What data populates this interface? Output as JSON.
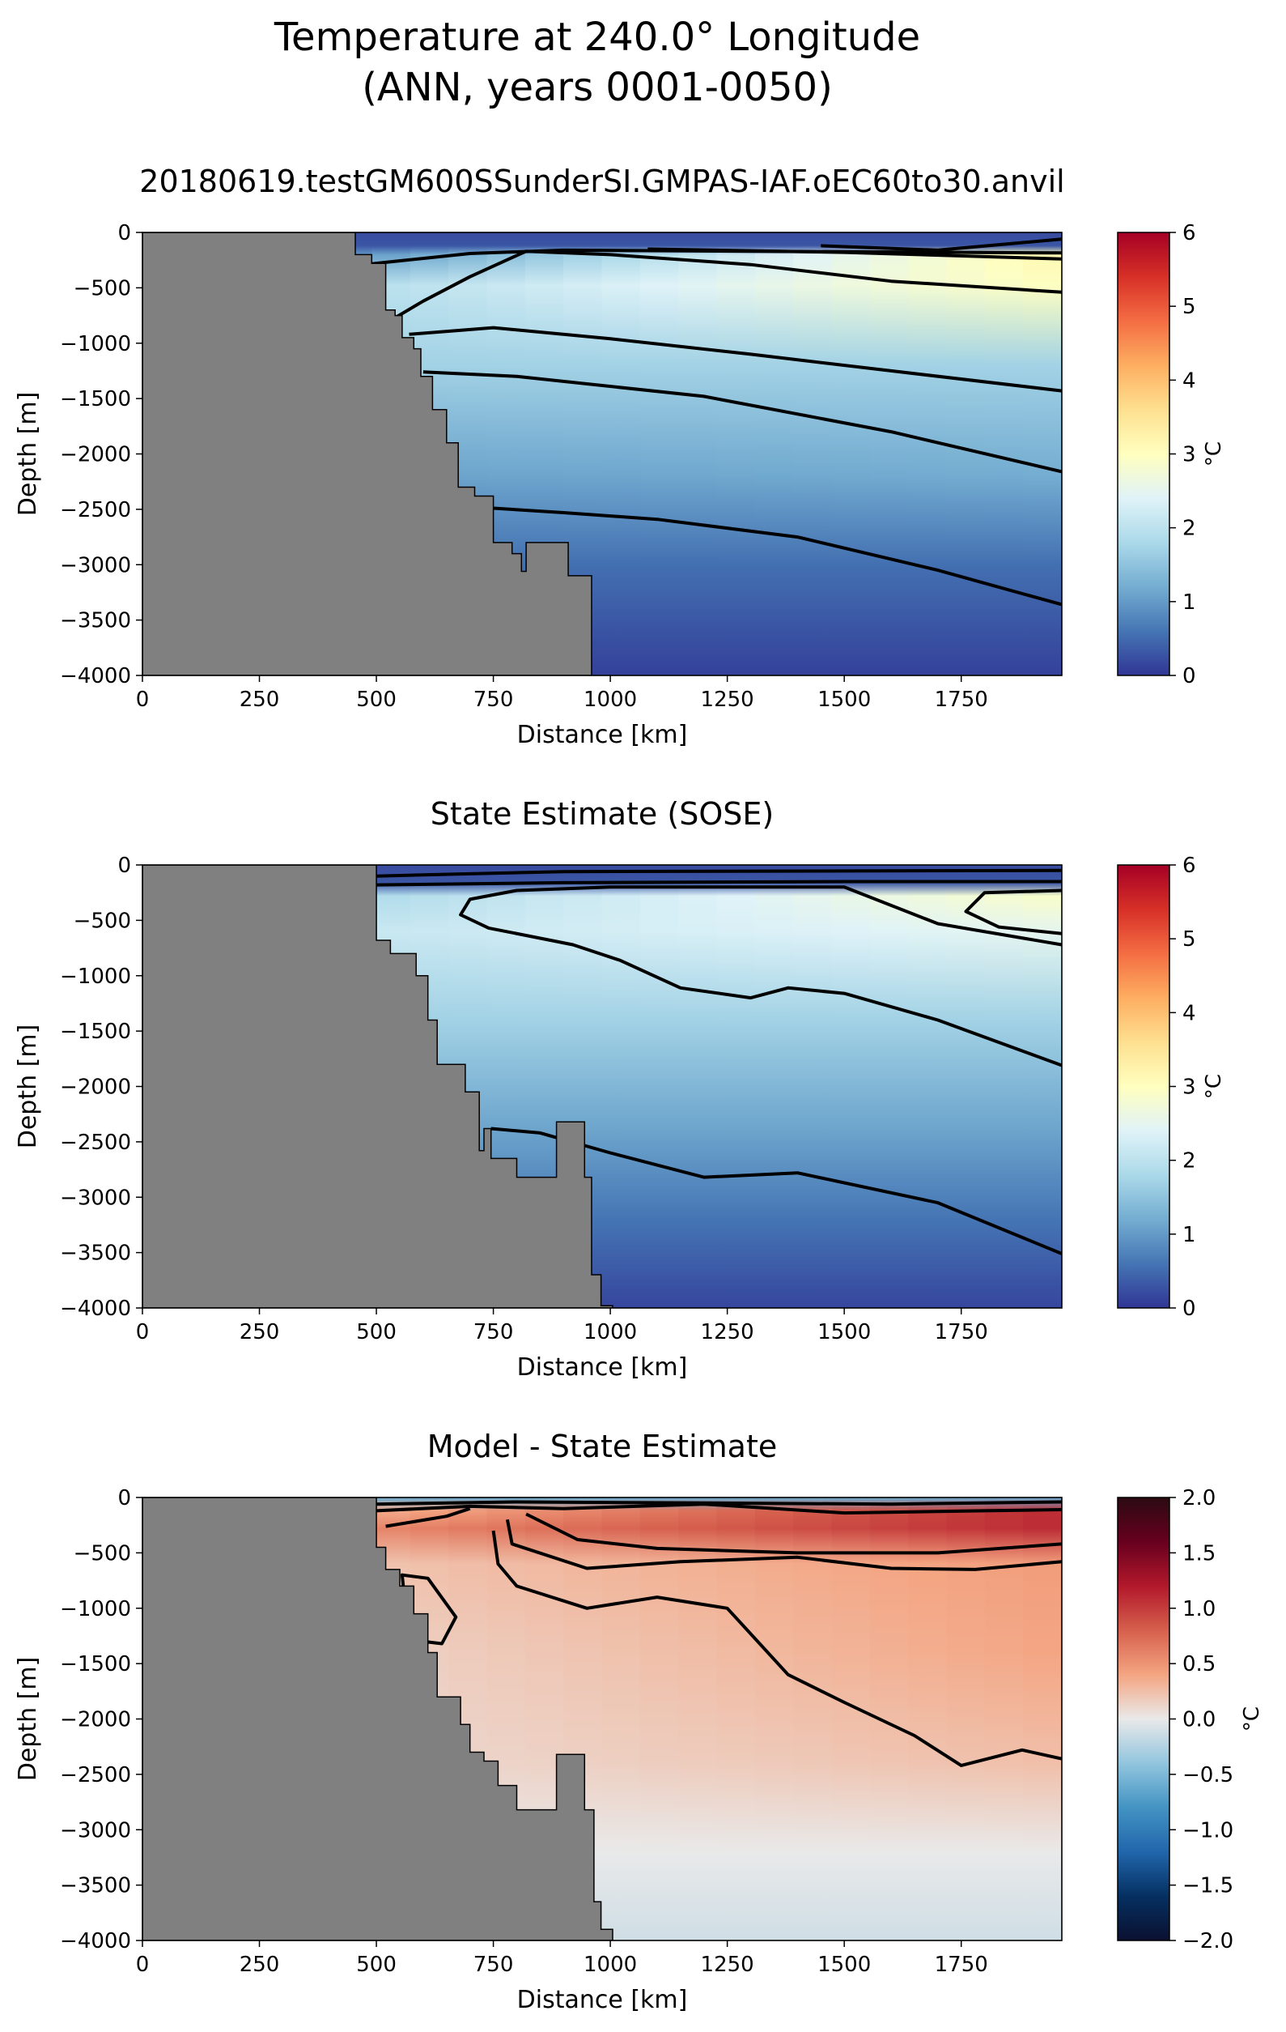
{
  "figure": {
    "suptitle_line1": "Temperature at 240.0° Longitude",
    "suptitle_line2": "(ANN, years 0001-0050)"
  },
  "colors": {
    "land": "#808080",
    "contour": "#000000",
    "rdylbu_r": [
      "#313695",
      "#4575b4",
      "#74add1",
      "#abd9e9",
      "#e0f3f8",
      "#ffffbf",
      "#fee090",
      "#fdae61",
      "#f46d43",
      "#d73027",
      "#a50026"
    ],
    "rdbu_r_ext": [
      "#0b1030",
      "#053061",
      "#2166ac",
      "#4393c3",
      "#92c5de",
      "#e9e9e9",
      "#f4a582",
      "#d6604d",
      "#b2182b",
      "#67001f",
      "#2b0a12"
    ]
  },
  "chart_data": [
    {
      "type": "heatmap",
      "title": "20180619.testGM600SSunderSI.GMPAS-IAF.oEC60to30.anvil",
      "xlabel": "Distance [km]",
      "ylabel": "Depth [m]",
      "xlim": [
        0,
        1965
      ],
      "ylim": [
        -4000,
        0
      ],
      "xticks": [
        "0",
        "250",
        "500",
        "750",
        "1000",
        "1250",
        "1500",
        "1750"
      ],
      "yticks": [
        "0",
        "−500",
        "−1000",
        "−1500",
        "−2000",
        "−2500",
        "−3000",
        "−3500",
        "−4000"
      ],
      "colorbar": {
        "label": "°C",
        "range": [
          0,
          6
        ],
        "ticks": [
          "0",
          "1",
          "2",
          "3",
          "4",
          "5",
          "6"
        ]
      },
      "bathymetry": [
        [
          0,
          0
        ],
        [
          455,
          0
        ],
        [
          455,
          -200
        ],
        [
          490,
          -200
        ],
        [
          490,
          -280
        ],
        [
          520,
          -280
        ],
        [
          520,
          -700
        ],
        [
          540,
          -700
        ],
        [
          540,
          -750
        ],
        [
          555,
          -750
        ],
        [
          555,
          -950
        ],
        [
          580,
          -950
        ],
        [
          580,
          -1050
        ],
        [
          595,
          -1050
        ],
        [
          595,
          -1300
        ],
        [
          620,
          -1300
        ],
        [
          620,
          -1600
        ],
        [
          650,
          -1600
        ],
        [
          650,
          -1900
        ],
        [
          675,
          -1900
        ],
        [
          675,
          -2300
        ],
        [
          710,
          -2300
        ],
        [
          710,
          -2380
        ],
        [
          750,
          -2380
        ],
        [
          750,
          -2800
        ],
        [
          790,
          -2800
        ],
        [
          790,
          -2900
        ],
        [
          810,
          -2900
        ],
        [
          810,
          -3060
        ],
        [
          820,
          -3060
        ],
        [
          820,
          -2800
        ],
        [
          910,
          -2800
        ],
        [
          910,
          -3100
        ],
        [
          960,
          -3100
        ],
        [
          960,
          -4000
        ],
        [
          0,
          -4000
        ]
      ],
      "contours": [
        [
          [
            455,
            -300
          ],
          [
            520,
            -270
          ],
          [
            700,
            -190
          ],
          [
            900,
            -160
          ],
          [
            1300,
            -170
          ],
          [
            1965,
            -185
          ]
        ],
        [
          [
            1080,
            -150
          ],
          [
            1500,
            -180
          ],
          [
            1965,
            -240
          ]
        ],
        [
          [
            1450,
            -120
          ],
          [
            1700,
            -160
          ],
          [
            1965,
            -60
          ]
        ],
        [
          [
            540,
            -770
          ],
          [
            600,
            -620
          ],
          [
            700,
            -400
          ],
          [
            820,
            -170
          ],
          [
            1000,
            -200
          ],
          [
            1300,
            -290
          ],
          [
            1600,
            -440
          ],
          [
            1965,
            -540
          ]
        ],
        [
          [
            570,
            -920
          ],
          [
            750,
            -860
          ],
          [
            1000,
            -960
          ],
          [
            1300,
            -1100
          ],
          [
            1600,
            -1250
          ],
          [
            1965,
            -1430
          ]
        ],
        [
          [
            600,
            -1260
          ],
          [
            800,
            -1300
          ],
          [
            1200,
            -1480
          ],
          [
            1600,
            -1800
          ],
          [
            1965,
            -2160
          ]
        ],
        [
          [
            750,
            -2490
          ],
          [
            900,
            -2530
          ],
          [
            1100,
            -2590
          ],
          [
            1400,
            -2750
          ],
          [
            1700,
            -3050
          ],
          [
            1965,
            -3360
          ]
        ]
      ]
    },
    {
      "type": "heatmap",
      "title": "State Estimate (SOSE)",
      "xlabel": "Distance [km]",
      "ylabel": "Depth [m]",
      "xlim": [
        0,
        1965
      ],
      "ylim": [
        -4000,
        0
      ],
      "xticks": [
        "0",
        "250",
        "500",
        "750",
        "1000",
        "1250",
        "1500",
        "1750"
      ],
      "yticks": [
        "0",
        "−500",
        "−1000",
        "−1500",
        "−2000",
        "−2500",
        "−3000",
        "−3500",
        "−4000"
      ],
      "colorbar": {
        "label": "°C",
        "range": [
          0,
          6
        ],
        "ticks": [
          "0",
          "1",
          "2",
          "3",
          "4",
          "5",
          "6"
        ]
      },
      "bathymetry": [
        [
          0,
          0
        ],
        [
          500,
          0
        ],
        [
          500,
          -680
        ],
        [
          530,
          -680
        ],
        [
          530,
          -800
        ],
        [
          585,
          -800
        ],
        [
          585,
          -1000
        ],
        [
          610,
          -1000
        ],
        [
          610,
          -1400
        ],
        [
          630,
          -1400
        ],
        [
          630,
          -1800
        ],
        [
          690,
          -1800
        ],
        [
          690,
          -2050
        ],
        [
          720,
          -2050
        ],
        [
          720,
          -2580
        ],
        [
          730,
          -2580
        ],
        [
          730,
          -2380
        ],
        [
          745,
          -2380
        ],
        [
          745,
          -2650
        ],
        [
          800,
          -2650
        ],
        [
          800,
          -2820
        ],
        [
          885,
          -2820
        ],
        [
          885,
          -2320
        ],
        [
          945,
          -2320
        ],
        [
          945,
          -2820
        ],
        [
          960,
          -2820
        ],
        [
          960,
          -3700
        ],
        [
          980,
          -3700
        ],
        [
          980,
          -3980
        ],
        [
          1005,
          -3980
        ],
        [
          1005,
          -4000
        ],
        [
          0,
          -4000
        ]
      ],
      "contours": [
        [
          [
            500,
            -100
          ],
          [
            700,
            -80
          ],
          [
            900,
            -60
          ],
          [
            1965,
            -50
          ]
        ],
        [
          [
            500,
            -180
          ],
          [
            900,
            -160
          ],
          [
            1500,
            -150
          ],
          [
            1965,
            -150
          ]
        ],
        [
          [
            1965,
            -620
          ],
          [
            1830,
            -560
          ],
          [
            1760,
            -420
          ],
          [
            1800,
            -250
          ],
          [
            1965,
            -230
          ]
        ],
        [
          [
            1965,
            -720
          ],
          [
            1700,
            -530
          ],
          [
            1500,
            -200
          ],
          [
            1000,
            -200
          ],
          [
            800,
            -230
          ],
          [
            700,
            -310
          ],
          [
            680,
            -450
          ],
          [
            740,
            -570
          ],
          [
            920,
            -720
          ],
          [
            1020,
            -860
          ],
          [
            1150,
            -1110
          ],
          [
            1300,
            -1200
          ],
          [
            1380,
            -1110
          ],
          [
            1500,
            -1160
          ],
          [
            1700,
            -1400
          ],
          [
            1965,
            -1810
          ]
        ],
        [
          [
            745,
            -2380
          ],
          [
            850,
            -2420
          ],
          [
            1000,
            -2600
          ],
          [
            1200,
            -2820
          ],
          [
            1400,
            -2780
          ],
          [
            1700,
            -3050
          ],
          [
            1965,
            -3510
          ]
        ]
      ]
    },
    {
      "type": "heatmap",
      "title": "Model - State Estimate",
      "xlabel": "Distance [km]",
      "ylabel": "Depth [m]",
      "xlim": [
        0,
        1965
      ],
      "ylim": [
        -4000,
        0
      ],
      "xticks": [
        "0",
        "250",
        "500",
        "750",
        "1000",
        "1250",
        "1500",
        "1750"
      ],
      "yticks": [
        "0",
        "−500",
        "−1000",
        "−1500",
        "−2000",
        "−2500",
        "−3000",
        "−3500",
        "−4000"
      ],
      "colorbar": {
        "label": "°C",
        "range": [
          -2.0,
          2.0
        ],
        "ticks": [
          "−2.0",
          "−1.5",
          "−1.0",
          "−0.5",
          "0.0",
          "0.5",
          "1.0",
          "1.5",
          "2.0"
        ]
      },
      "bathymetry": [
        [
          0,
          0
        ],
        [
          500,
          0
        ],
        [
          500,
          -450
        ],
        [
          520,
          -450
        ],
        [
          520,
          -650
        ],
        [
          550,
          -650
        ],
        [
          550,
          -800
        ],
        [
          580,
          -800
        ],
        [
          580,
          -1050
        ],
        [
          610,
          -1050
        ],
        [
          610,
          -1400
        ],
        [
          630,
          -1400
        ],
        [
          630,
          -1800
        ],
        [
          680,
          -1800
        ],
        [
          680,
          -2050
        ],
        [
          700,
          -2050
        ],
        [
          700,
          -2300
        ],
        [
          730,
          -2300
        ],
        [
          730,
          -2380
        ],
        [
          760,
          -2380
        ],
        [
          760,
          -2600
        ],
        [
          800,
          -2600
        ],
        [
          800,
          -2820
        ],
        [
          885,
          -2820
        ],
        [
          885,
          -2320
        ],
        [
          945,
          -2320
        ],
        [
          945,
          -2820
        ],
        [
          965,
          -2820
        ],
        [
          965,
          -3650
        ],
        [
          980,
          -3650
        ],
        [
          980,
          -3900
        ],
        [
          1005,
          -3900
        ],
        [
          1005,
          -4000
        ],
        [
          0,
          -4000
        ]
      ],
      "contours": [
        [
          [
            500,
            -60
          ],
          [
            800,
            -40
          ],
          [
            1200,
            -50
          ],
          [
            1600,
            -60
          ],
          [
            1965,
            -40
          ]
        ],
        [
          [
            500,
            -120
          ],
          [
            700,
            -80
          ],
          [
            900,
            -100
          ],
          [
            1200,
            -60
          ],
          [
            1500,
            -140
          ],
          [
            1800,
            -120
          ],
          [
            1965,
            -110
          ]
        ],
        [
          [
            520,
            -260
          ],
          [
            650,
            -170
          ],
          [
            700,
            -100
          ]
        ],
        [
          [
            580,
            -1290
          ],
          [
            640,
            -1320
          ],
          [
            670,
            -1080
          ],
          [
            610,
            -730
          ],
          [
            555,
            -700
          ],
          [
            560,
            -900
          ]
        ],
        [
          [
            1965,
            -420
          ],
          [
            1700,
            -500
          ],
          [
            1400,
            -500
          ],
          [
            1100,
            -460
          ],
          [
            930,
            -380
          ],
          [
            820,
            -150
          ]
        ],
        [
          [
            1965,
            -580
          ],
          [
            1780,
            -650
          ],
          [
            1600,
            -640
          ],
          [
            1400,
            -540
          ],
          [
            1150,
            -580
          ],
          [
            950,
            -640
          ],
          [
            790,
            -420
          ],
          [
            780,
            -200
          ]
        ],
        [
          [
            750,
            -300
          ],
          [
            760,
            -600
          ],
          [
            800,
            -800
          ],
          [
            950,
            -1000
          ],
          [
            1100,
            -900
          ],
          [
            1250,
            -1000
          ],
          [
            1380,
            -1600
          ],
          [
            1500,
            -1850
          ],
          [
            1650,
            -2150
          ],
          [
            1750,
            -2420
          ],
          [
            1880,
            -2280
          ],
          [
            1965,
            -2360
          ]
        ]
      ]
    }
  ]
}
